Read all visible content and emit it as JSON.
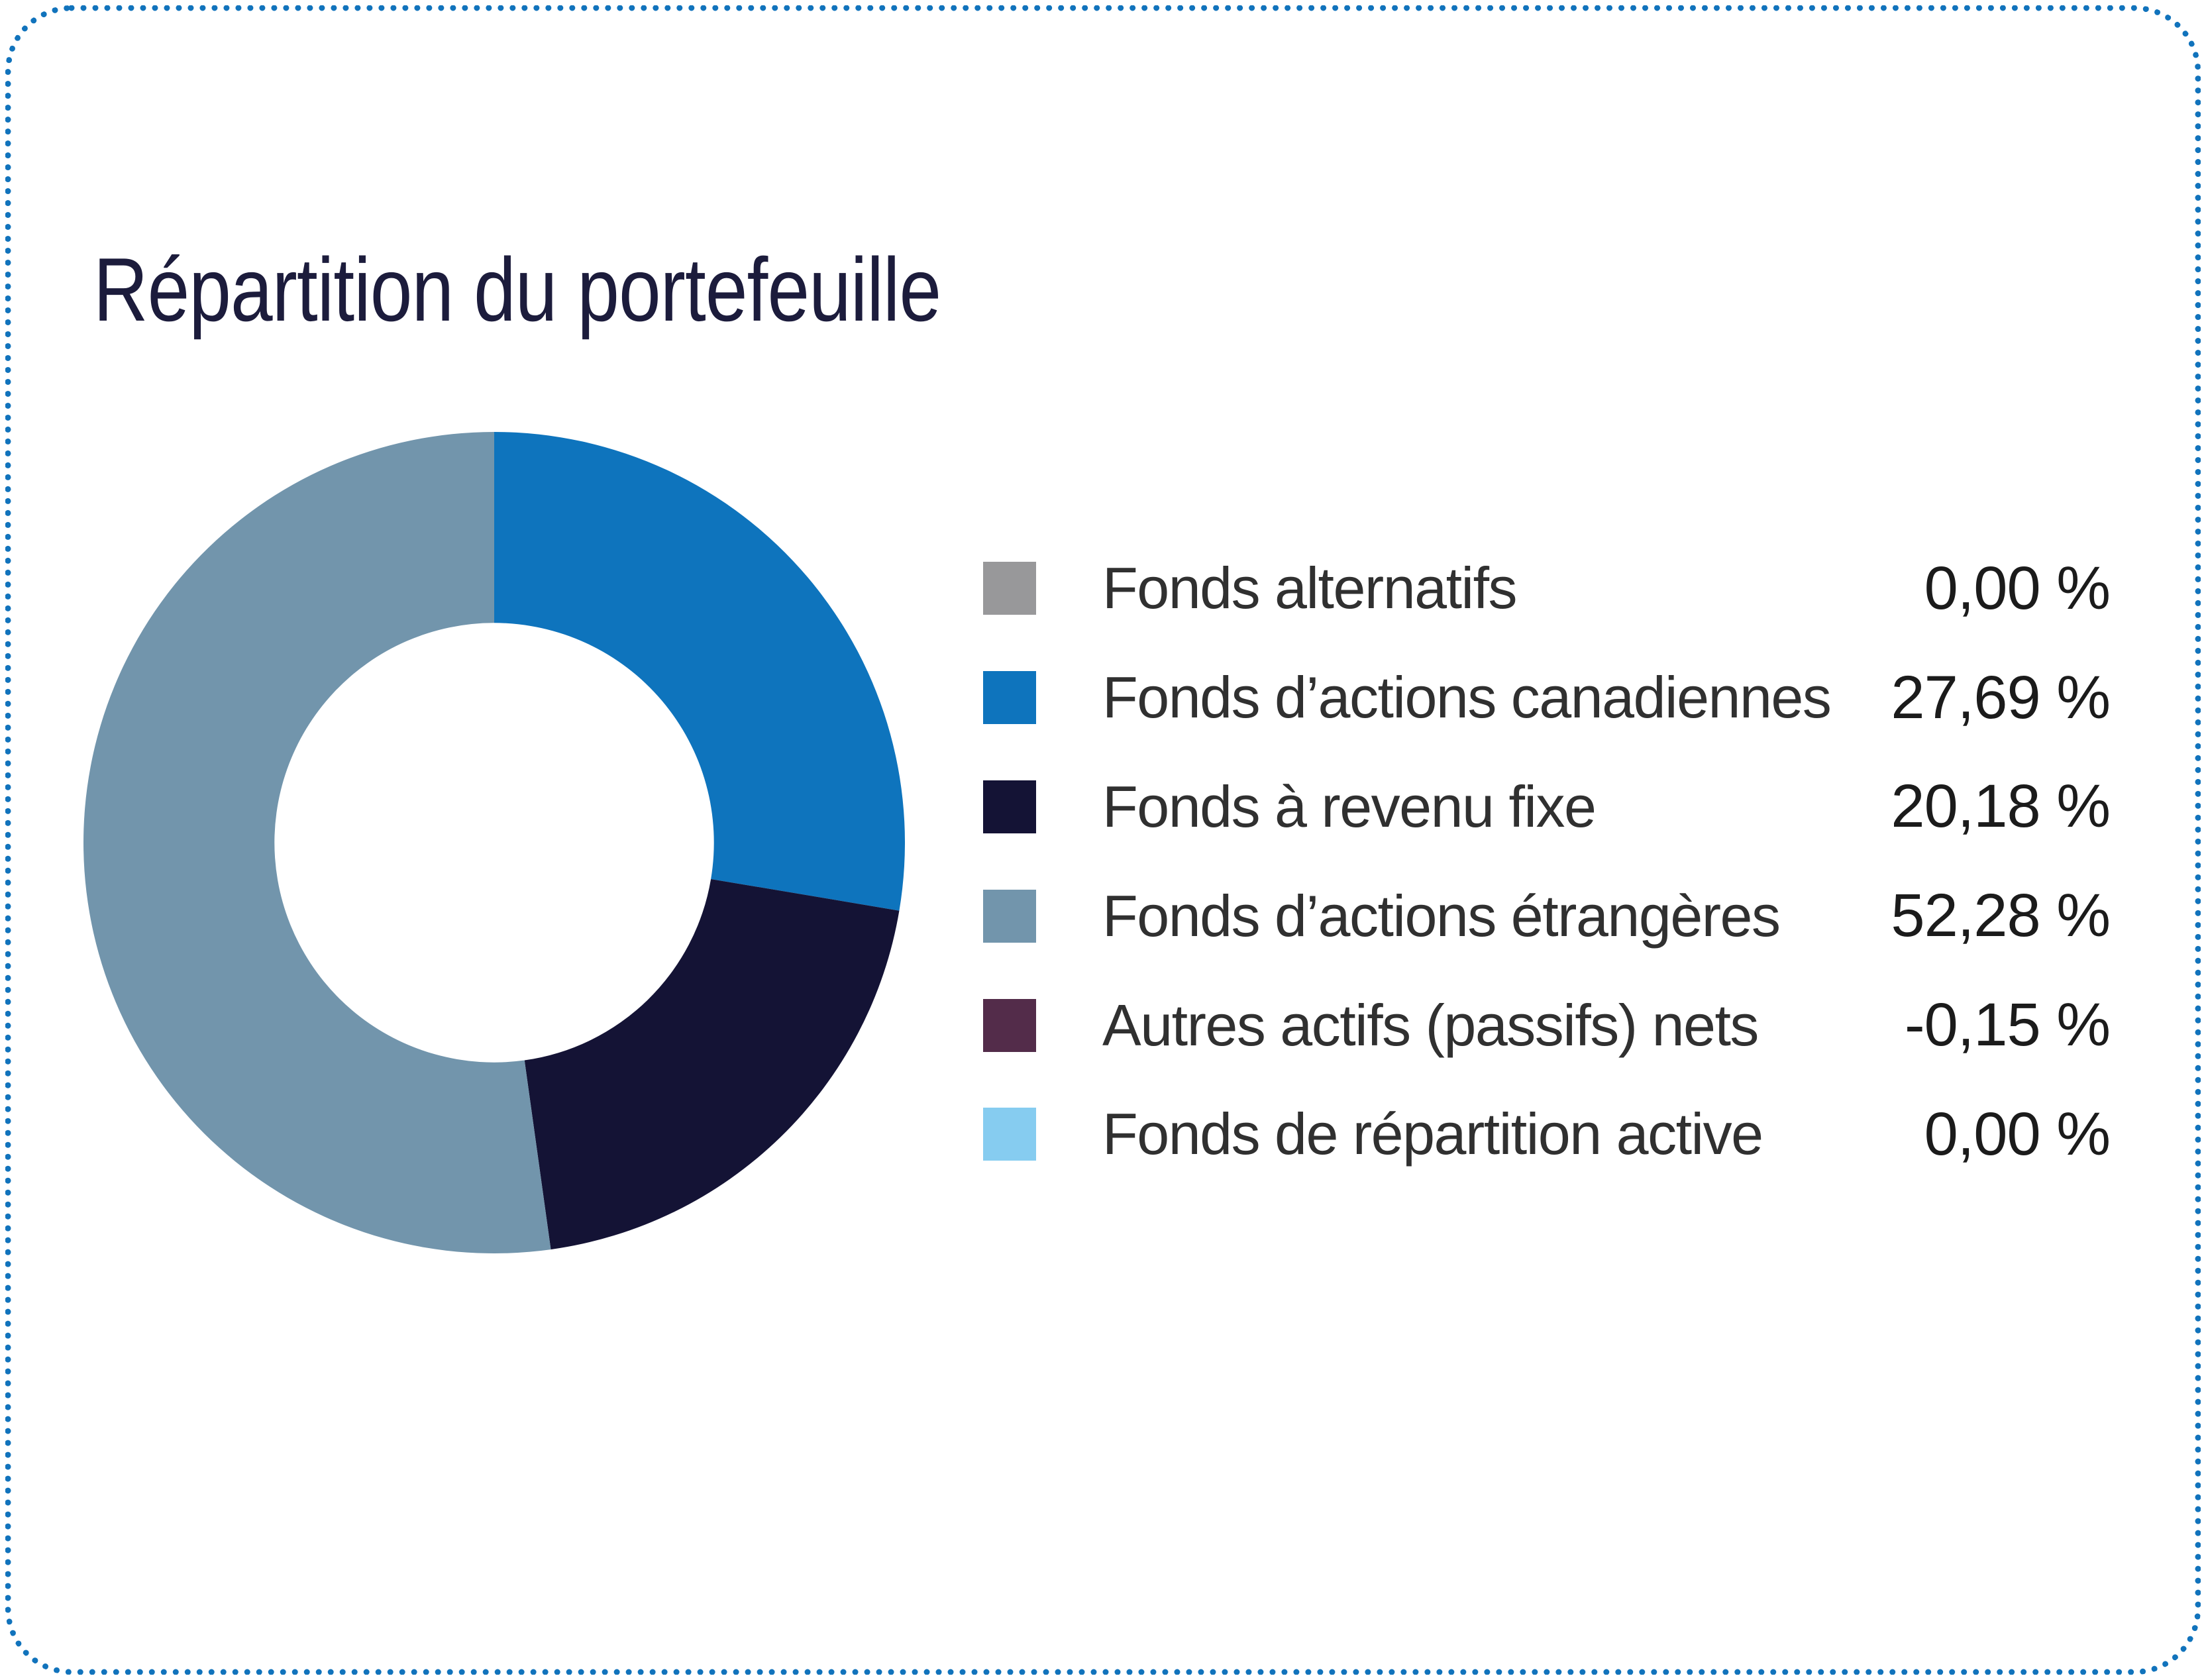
{
  "title": "Répartition du portefeuille",
  "colors": {
    "border_dots": "#1173bc",
    "title_text": "#1c1c3c"
  },
  "chart_data": {
    "type": "pie",
    "subtype": "donut",
    "title": "Répartition du portefeuille",
    "start_angle_deg": 0,
    "direction": "clockwise",
    "inner_radius_ratio": 0.535,
    "legend_position": "right",
    "series": [
      {
        "label": "Fonds alternatifs",
        "value_pct": 0.0,
        "display": "0,00 %",
        "color": "#98989a"
      },
      {
        "label": "Fonds d’actions canadiennes",
        "value_pct": 27.69,
        "display": "27,69 %",
        "color": "#0e74bd"
      },
      {
        "label": "Fonds à revenu fixe",
        "value_pct": 20.18,
        "display": "20,18 %",
        "color": "#141335"
      },
      {
        "label": "Fonds d’actions étrangères",
        "value_pct": 52.28,
        "display": "52,28 %",
        "color": "#7295ac"
      },
      {
        "label": "Autres actifs (passifs) nets",
        "value_pct": -0.15,
        "display": "-0,15 %",
        "color": "#532c4a"
      },
      {
        "label": "Fonds de répartition active",
        "value_pct": 0.0,
        "display": "0,00 %",
        "color": "#86ccf0"
      }
    ]
  }
}
